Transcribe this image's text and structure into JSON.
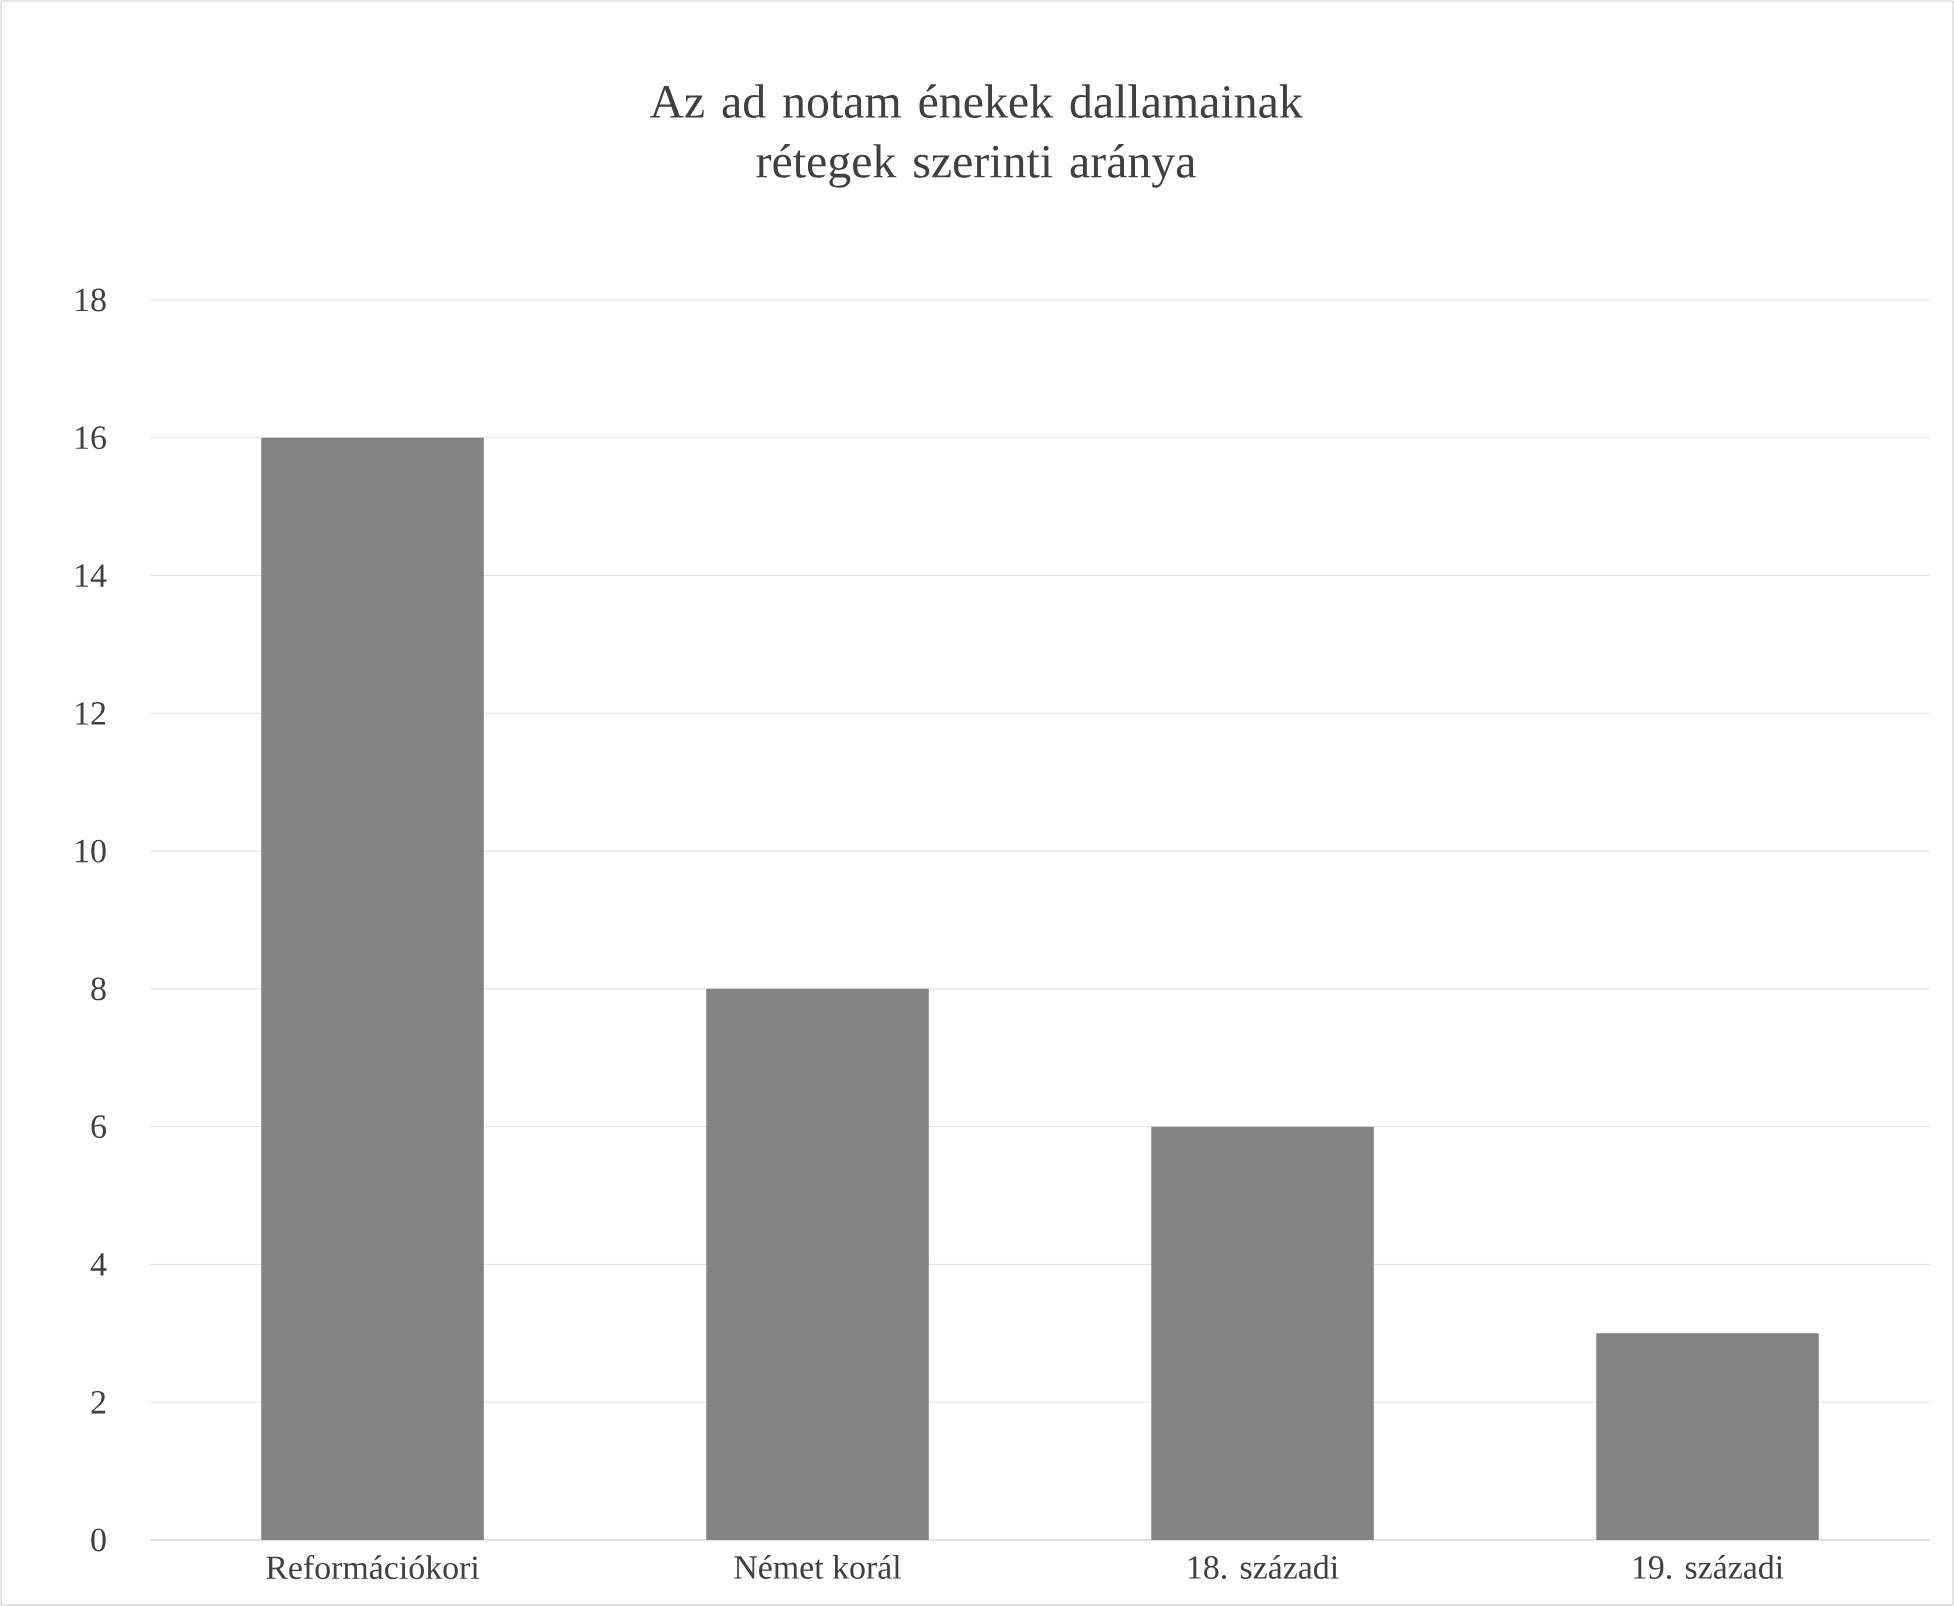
{
  "chart_data": {
    "type": "bar",
    "title": "Az ad notam énekek dallamainak rétegek szerinti aránya",
    "categories": [
      "Reformációkori",
      "Német korál",
      "18. századi",
      "19. századi"
    ],
    "values": [
      16,
      8,
      6,
      3
    ],
    "color": "#838383",
    "ylim": [
      0,
      18
    ],
    "yticks": [
      0,
      2,
      4,
      6,
      8,
      10,
      12,
      14,
      16,
      18
    ],
    "grid": "y"
  }
}
